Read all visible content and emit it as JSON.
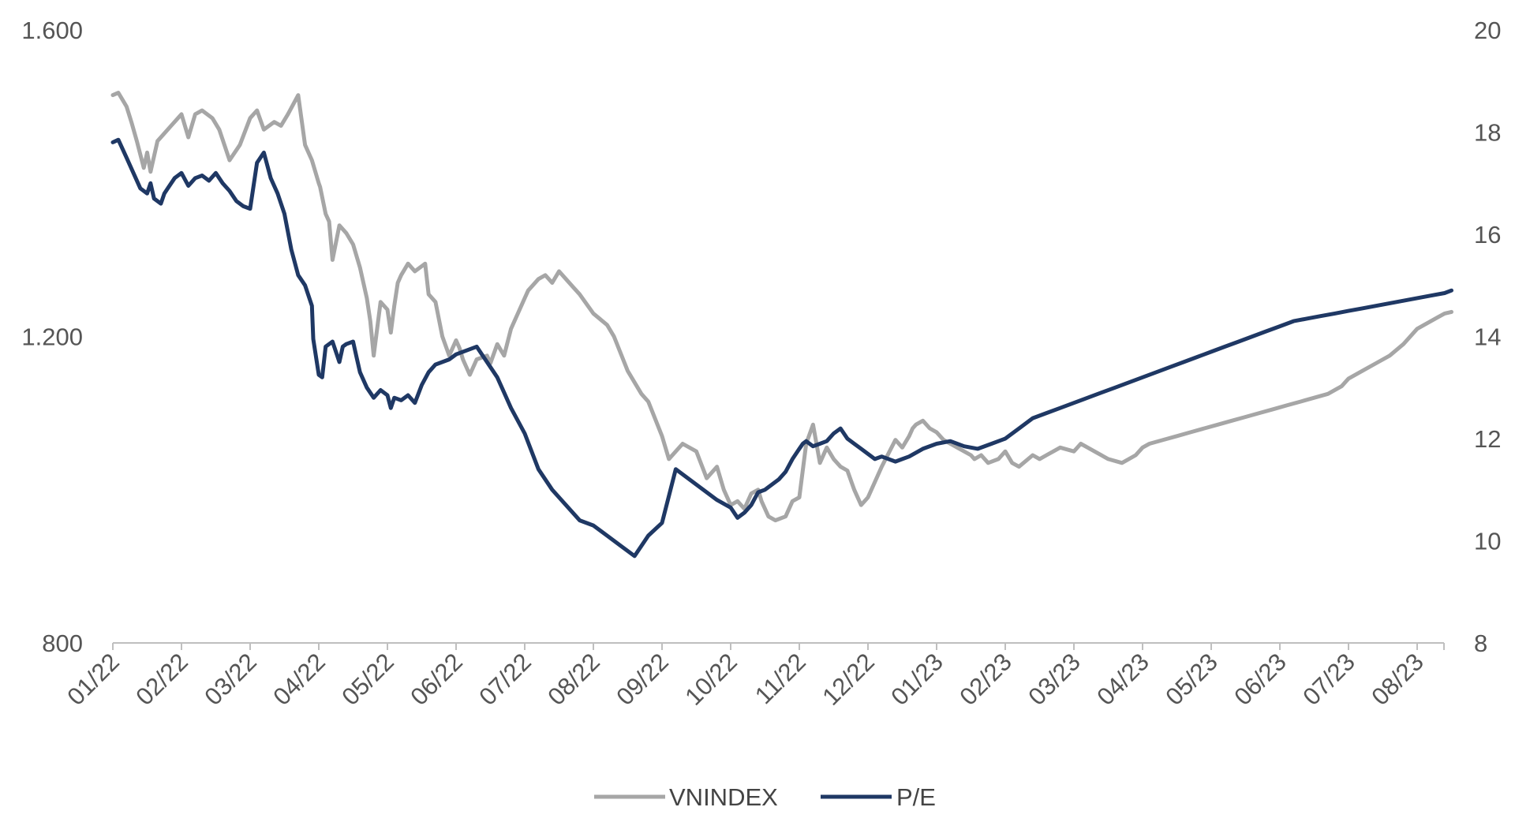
{
  "chart_data": {
    "type": "line",
    "title": "",
    "xlabel": "",
    "ylabel": "",
    "x_labels": [
      "01/22",
      "02/22",
      "03/22",
      "04/22",
      "05/22",
      "06/22",
      "07/22",
      "08/22",
      "09/22",
      "10/22",
      "11/22",
      "12/22",
      "01/23",
      "02/23",
      "03/23",
      "04/23",
      "05/23",
      "06/23",
      "07/23",
      "08/23"
    ],
    "left_axis": {
      "ticks": [
        "1.600",
        "1.200",
        "800"
      ],
      "tick_values": [
        1600,
        1200,
        800
      ],
      "ylim": [
        800,
        1600
      ]
    },
    "right_axis": {
      "ticks": [
        "20",
        "18",
        "16",
        "14",
        "12",
        "10",
        "8"
      ],
      "tick_values": [
        20,
        18,
        16,
        14,
        12,
        10,
        8
      ],
      "ylim": [
        8,
        20
      ]
    },
    "series": [
      {
        "name": "VNINDEX",
        "axis": "left",
        "color": "#a6a6a6",
        "x": [
          0,
          0.08,
          0.2,
          0.27,
          0.35,
          0.45,
          0.5,
          0.55,
          0.65,
          0.75,
          0.85,
          0.95,
          1.0,
          1.1,
          1.2,
          1.3,
          1.45,
          1.55,
          1.7,
          1.85,
          2.0,
          2.1,
          2.2,
          2.35,
          2.45,
          2.55,
          2.7,
          2.8,
          2.9,
          3.0,
          3.02,
          3.1,
          3.15,
          3.2,
          3.3,
          3.4,
          3.5,
          3.6,
          3.7,
          3.75,
          3.8,
          3.9,
          4.0,
          4.05,
          4.1,
          4.15,
          4.2,
          4.3,
          4.4,
          4.55,
          4.6,
          4.7,
          4.8,
          4.9,
          5.0,
          5.05,
          5.1,
          5.2,
          5.3,
          5.45,
          5.5,
          5.6,
          5.7,
          5.8,
          5.9,
          6.0,
          6.05,
          6.1,
          6.2,
          6.3,
          6.4,
          6.5,
          6.6,
          6.7,
          6.8,
          7.0,
          7.2,
          7.3,
          7.5,
          7.7,
          7.8,
          8.0,
          8.1,
          8.3,
          8.5,
          8.65,
          8.8,
          8.9,
          9.0,
          9.1,
          9.2,
          9.3,
          9.4,
          9.45,
          9.55,
          9.65,
          9.8,
          9.9,
          10.0,
          10.1,
          10.2,
          10.3,
          10.4,
          10.5,
          10.6,
          10.7,
          10.8,
          10.9,
          11.0,
          11.2,
          11.4,
          11.5,
          11.6,
          11.65,
          11.7,
          11.8,
          11.9,
          12.0,
          12.1,
          12.2,
          12.3,
          12.5,
          12.55,
          12.65,
          12.75,
          12.9,
          13.0,
          13.1,
          13.2,
          13.4,
          13.5,
          13.6,
          13.7,
          13.8,
          14.0,
          14.1,
          14.2,
          14.3,
          14.5,
          14.7,
          14.9,
          15.0,
          15.1,
          15.3,
          15.5,
          15.7,
          15.9,
          16.1,
          16.3,
          16.5,
          16.7,
          16.9,
          17.1,
          17.3,
          17.5,
          17.7,
          17.9,
          18.0,
          18.2,
          18.4,
          18.6,
          18.8,
          19.0,
          19.2,
          19.3,
          19.4,
          19.5
        ],
        "values": [
          1515,
          1518,
          1500,
          1480,
          1455,
          1420,
          1440,
          1415,
          1455,
          1465,
          1475,
          1485,
          1490,
          1460,
          1490,
          1495,
          1485,
          1470,
          1430,
          1450,
          1485,
          1495,
          1470,
          1480,
          1475,
          1490,
          1515,
          1450,
          1430,
          1400,
          1395,
          1360,
          1350,
          1300,
          1345,
          1335,
          1320,
          1290,
          1250,
          1220,
          1175,
          1245,
          1235,
          1205,
          1240,
          1270,
          1280,
          1295,
          1285,
          1295,
          1255,
          1245,
          1200,
          1175,
          1195,
          1185,
          1170,
          1150,
          1170,
          1175,
          1165,
          1190,
          1175,
          1210,
          1230,
          1250,
          1260,
          1265,
          1275,
          1280,
          1270,
          1285,
          1275,
          1265,
          1255,
          1230,
          1215,
          1200,
          1155,
          1125,
          1115,
          1070,
          1040,
          1060,
          1050,
          1015,
          1030,
          1000,
          980,
          985,
          975,
          995,
          1000,
          985,
          965,
          960,
          965,
          985,
          990,
          1060,
          1085,
          1035,
          1055,
          1040,
          1030,
          1025,
          1000,
          980,
          990,
          1030,
          1065,
          1055,
          1070,
          1080,
          1085,
          1090,
          1080,
          1075,
          1065,
          1060,
          1055,
          1045,
          1040,
          1045,
          1035,
          1040,
          1050,
          1035,
          1030,
          1045,
          1040,
          1045,
          1050,
          1055,
          1050,
          1060,
          1055,
          1050,
          1040,
          1035,
          1045,
          1055,
          1060,
          1065,
          1070,
          1075,
          1080,
          1085,
          1090,
          1095,
          1100,
          1105,
          1110,
          1115,
          1120,
          1125,
          1135,
          1145,
          1155,
          1165,
          1175,
          1190,
          1210,
          1220,
          1225,
          1230,
          1232
        ]
      },
      {
        "name": "P/E",
        "axis": "right",
        "color": "#1f3864",
        "x": [
          0,
          0.08,
          0.2,
          0.3,
          0.4,
          0.5,
          0.55,
          0.6,
          0.7,
          0.75,
          0.8,
          0.9,
          1.0,
          1.1,
          1.2,
          1.3,
          1.4,
          1.5,
          1.6,
          1.7,
          1.8,
          1.9,
          2.0,
          2.1,
          2.2,
          2.3,
          2.4,
          2.5,
          2.6,
          2.7,
          2.8,
          2.9,
          2.92,
          3.0,
          3.05,
          3.1,
          3.2,
          3.3,
          3.35,
          3.4,
          3.5,
          3.55,
          3.6,
          3.7,
          3.8,
          3.9,
          4.0,
          4.05,
          4.1,
          4.2,
          4.3,
          4.4,
          4.5,
          4.6,
          4.7,
          4.8,
          4.9,
          5.0,
          5.1,
          5.2,
          5.3,
          5.4,
          5.5,
          5.6,
          5.7,
          5.8,
          6.0,
          6.2,
          6.4,
          6.6,
          6.8,
          7.0,
          7.2,
          7.4,
          7.6,
          7.8,
          8.0,
          8.2,
          8.4,
          8.6,
          8.8,
          9.0,
          9.1,
          9.2,
          9.3,
          9.4,
          9.5,
          9.6,
          9.7,
          9.8,
          9.9,
          10.0,
          10.05,
          10.1,
          10.2,
          10.3,
          10.4,
          10.5,
          10.6,
          10.7,
          10.8,
          10.9,
          11.0,
          11.1,
          11.2,
          11.4,
          11.6,
          11.8,
          12.0,
          12.2,
          12.4,
          12.6,
          12.8,
          13.0,
          13.2,
          13.4,
          13.6,
          13.8,
          14.0,
          14.2,
          14.4,
          14.6,
          14.8,
          15.0,
          15.2,
          15.4,
          15.6,
          15.8,
          16.0,
          16.2,
          16.4,
          16.6,
          16.8,
          17.0,
          17.2,
          17.4,
          17.6,
          17.8,
          18.0,
          18.2,
          18.4,
          18.6,
          18.8,
          19.0,
          19.2,
          19.4,
          19.5
        ],
        "values": [
          17.8,
          17.85,
          17.5,
          17.2,
          16.9,
          16.8,
          17.0,
          16.7,
          16.6,
          16.8,
          16.9,
          17.1,
          17.2,
          16.95,
          17.1,
          17.15,
          17.05,
          17.2,
          17.0,
          16.85,
          16.65,
          16.55,
          16.5,
          17.4,
          17.6,
          17.1,
          16.8,
          16.4,
          15.7,
          15.2,
          15.0,
          14.6,
          13.95,
          13.25,
          13.2,
          13.8,
          13.9,
          13.5,
          13.8,
          13.85,
          13.9,
          13.6,
          13.3,
          13.0,
          12.8,
          12.95,
          12.85,
          12.6,
          12.8,
          12.75,
          12.85,
          12.7,
          13.05,
          13.3,
          13.45,
          13.5,
          13.55,
          13.65,
          13.7,
          13.75,
          13.8,
          13.6,
          13.4,
          13.2,
          12.9,
          12.6,
          12.1,
          11.4,
          11.0,
          10.7,
          10.4,
          10.3,
          10.1,
          9.9,
          9.7,
          10.1,
          10.35,
          11.4,
          11.2,
          11.0,
          10.8,
          10.65,
          10.45,
          10.55,
          10.7,
          10.95,
          11.0,
          11.1,
          11.2,
          11.35,
          11.6,
          11.8,
          11.9,
          11.95,
          11.85,
          11.9,
          11.95,
          12.1,
          12.2,
          12.0,
          11.9,
          11.8,
          11.7,
          11.6,
          11.65,
          11.55,
          11.65,
          11.8,
          11.9,
          11.95,
          11.85,
          11.8,
          11.9,
          12.0,
          12.2,
          12.4,
          12.5,
          12.6,
          12.7,
          12.8,
          12.9,
          13.0,
          13.1,
          13.2,
          13.3,
          13.4,
          13.5,
          13.6,
          13.7,
          13.8,
          13.9,
          14.0,
          14.1,
          14.2,
          14.3,
          14.35,
          14.4,
          14.45,
          14.5,
          14.55,
          14.6,
          14.65,
          14.7,
          14.75,
          14.8,
          14.85,
          14.9
        ]
      }
    ],
    "legend": {
      "position": "bottom-center",
      "entries": [
        "VNINDEX",
        "P/E"
      ]
    }
  }
}
